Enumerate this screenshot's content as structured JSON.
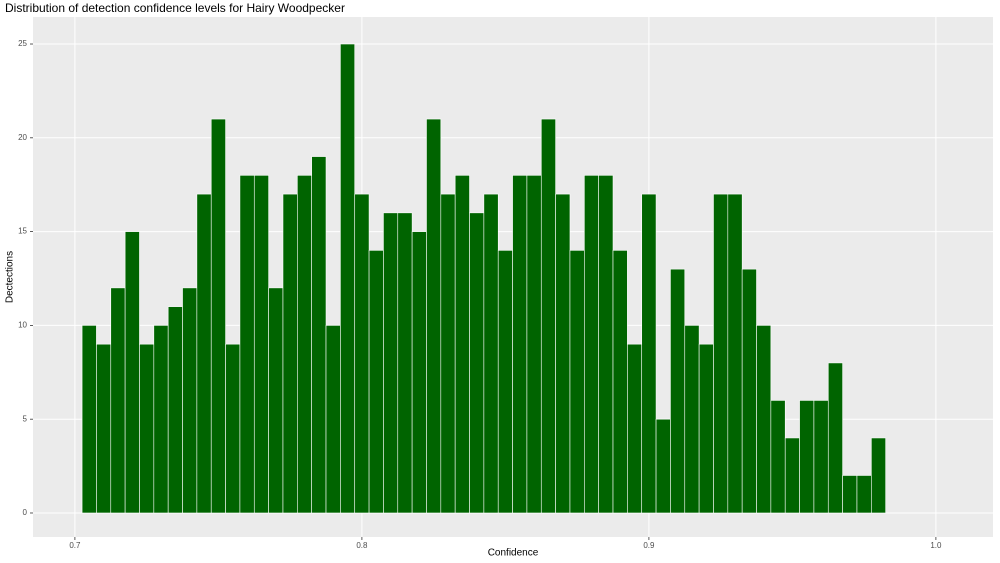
{
  "chart_data": {
    "type": "histogram",
    "title": "Distribution of detection confidence levels for Hairy Woodpecker",
    "x_label": "Confidence",
    "y_label": "Dectections",
    "bins": [
      0.7025,
      0.7075,
      0.7125,
      0.7175,
      0.7225,
      0.7275,
      0.7325,
      0.7375,
      0.7425,
      0.7475,
      0.7525,
      0.7575,
      0.7625,
      0.7675,
      0.7725,
      0.7775,
      0.7825,
      0.7875,
      0.7925,
      0.7975,
      0.8025,
      0.8075,
      0.8125,
      0.8175,
      0.8225,
      0.8275,
      0.8325,
      0.8375,
      0.8425,
      0.8475,
      0.8525,
      0.8575,
      0.8625,
      0.8675,
      0.8725,
      0.8775,
      0.8825,
      0.8875,
      0.8925,
      0.8975,
      0.9025,
      0.9075,
      0.9125,
      0.9175,
      0.9225,
      0.9275,
      0.9325,
      0.9375,
      0.9425,
      0.9475,
      0.9525,
      0.9575,
      0.9625,
      0.9675,
      0.9725,
      0.9775,
      0.9825
    ],
    "values": [
      10,
      9,
      12,
      15,
      9,
      10,
      11,
      12,
      17,
      21,
      9,
      18,
      18,
      12,
      17,
      18,
      19,
      10,
      25,
      17,
      14,
      16,
      16,
      15,
      21,
      17,
      18,
      16,
      17,
      14,
      18,
      18,
      21,
      17,
      14,
      18,
      18,
      14,
      9,
      17,
      5,
      13,
      10,
      9,
      17,
      17,
      13,
      10,
      6,
      4,
      6,
      6,
      8,
      2,
      2,
      4
    ],
    "color": "#006400",
    "xlim": [
      0.6854,
      1.0199
    ],
    "xticks": [
      0.7,
      0.8,
      0.9,
      {
        "value": 1,
        "label": "1.0"
      }
    ],
    "ylim": [
      -1.28,
      26.44
    ],
    "yticks": [
      0,
      5,
      10,
      15,
      20,
      25
    ],
    "grid": true
  }
}
